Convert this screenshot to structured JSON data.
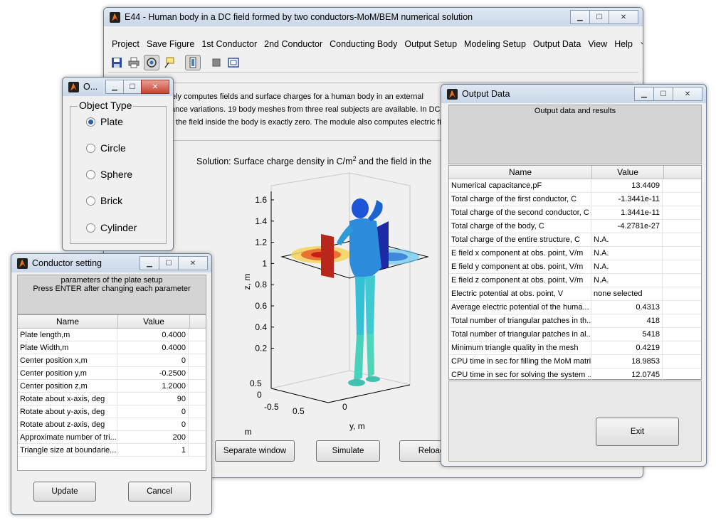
{
  "main": {
    "title": "E44 - Human body in a DC field formed by two conductors-MoM/BEM numerical solution",
    "menu": [
      "Project",
      "Save Figure",
      "1st Conductor",
      "2nd Conductor",
      "Conducting Body",
      "Output Setup",
      "Modeling Setup",
      "Output Data",
      "View",
      "Help"
    ],
    "menu_more": "↘",
    "desc_lines": [
      "urately computes fields and surface charges for a human body in an external",
      "ance variations. 19 body meshes from three real subjects are available. In DC",
      "the field inside the body is exactly zero. The module also computes electric fie"
    ],
    "solution_title": "Solution: Surface charge density in C/m",
    "solution_sup": "2",
    "solution_rest": " and the field in the",
    "z_ticks": [
      "1.6",
      "1.4",
      "1.2",
      "1",
      "0.8",
      "0.6",
      "0.4",
      "0.2"
    ],
    "z_label": "z, m",
    "x_ticks": [
      "0.5",
      "0",
      "-0.5"
    ],
    "x_label": "x, m",
    "y_ticks": [
      "0.5",
      "0"
    ],
    "y_label": "y, m",
    "buttons": {
      "separate": "Separate window",
      "simulate": "Simulate",
      "reload": "Reload"
    }
  },
  "object_type": {
    "title": "O...",
    "group": "Object Type",
    "options": [
      "Plate",
      "Circle",
      "Sphere",
      "Brick",
      "Cylinder"
    ],
    "selected": "Plate"
  },
  "conductor": {
    "title": "Conductor setting",
    "heading1": "parameters of the plate setup",
    "heading2": "Press ENTER after changing each parameter",
    "col_name": "Name",
    "col_value": "Value",
    "rows": [
      {
        "name": "Plate length,m",
        "value": "0.4000"
      },
      {
        "name": "Plate Width,m",
        "value": "0.4000"
      },
      {
        "name": "Center position x,m",
        "value": "0"
      },
      {
        "name": "Center position y,m",
        "value": "-0.2500"
      },
      {
        "name": "Center position z,m",
        "value": "1.2000"
      },
      {
        "name": "Rotate about x-axis, deg",
        "value": "90"
      },
      {
        "name": "Rotate about y-axis, deg",
        "value": "0"
      },
      {
        "name": "Rotate about z-axis, deg",
        "value": "0"
      },
      {
        "name": "Approximate number of tri...",
        "value": "200"
      },
      {
        "name": "Triangle size at boundarie...",
        "value": "1"
      }
    ],
    "update": "Update",
    "cancel": "Cancel"
  },
  "output": {
    "title": "Output Data",
    "heading": "Output data and results",
    "col_name": "Name",
    "col_value": "Value",
    "rows": [
      {
        "name": "Numerical capacitance,pF",
        "value": "13.4409",
        "align": "right"
      },
      {
        "name": "Total charge of the first conductor, C",
        "value": "-1.3441e-11",
        "align": "right"
      },
      {
        "name": "Total charge of the second conductor, C",
        "value": "1.3441e-11",
        "align": "right"
      },
      {
        "name": "Total charge of the body, C",
        "value": "-4.2781e-27",
        "align": "right"
      },
      {
        "name": "Total charge of the entire structure, C",
        "value": "N.A.",
        "align": "left"
      },
      {
        "name": "E field x component at obs. point, V/m",
        "value": "N.A.",
        "align": "left"
      },
      {
        "name": "E field y component at obs. point, V/m",
        "value": "N.A.",
        "align": "left"
      },
      {
        "name": "E field z component at obs. point, V/m",
        "value": "N.A.",
        "align": "left"
      },
      {
        "name": "Electric potential at obs. point, V",
        "value": "none selected",
        "align": "left"
      },
      {
        "name": "Average electric potential of the huma...",
        "value": "0.4313",
        "align": "right"
      },
      {
        "name": "Total number of triangular patches in th...",
        "value": "418",
        "align": "right"
      },
      {
        "name": "Total number of triangular patches in al...",
        "value": "5418",
        "align": "right"
      },
      {
        "name": "Minimum triangle quality in the mesh",
        "value": "0.4219",
        "align": "right"
      },
      {
        "name": "CPU time in sec for filling the MoM matrix",
        "value": "18.9853",
        "align": "right"
      },
      {
        "name": "CPU time in sec for solving the system ...",
        "value": "12.0745",
        "align": "right"
      }
    ],
    "exit": "Exit"
  }
}
